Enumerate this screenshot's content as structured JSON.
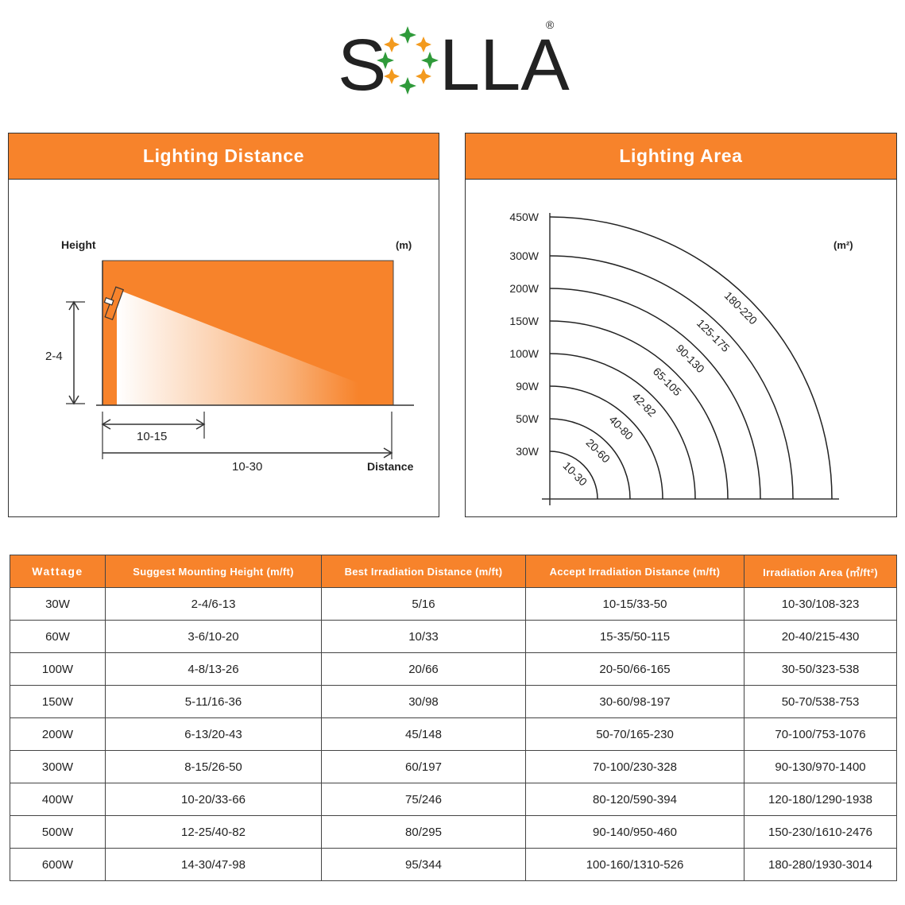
{
  "brand": {
    "name": "SOLLA",
    "registered_mark": "®",
    "letter_color": "#222222",
    "star_colors": [
      "#2f9a3a",
      "#f39a1e"
    ]
  },
  "accent_color": "#f7832b",
  "distance_panel": {
    "title": "Lighting Distance",
    "unit": "(m)",
    "height_label": "Height",
    "mount_height_value": "2-4",
    "best_distance_value": "10-15",
    "accept_distance_value": "10-30",
    "distance_label": "Distance"
  },
  "area_panel": {
    "title": "Lighting Area",
    "unit": "(m²)",
    "rings": [
      {
        "wattage": "30W",
        "area": "10-30"
      },
      {
        "wattage": "50W",
        "area": "20-60"
      },
      {
        "wattage": "90W",
        "area": "40-80"
      },
      {
        "wattage": "100W",
        "area": "42-82"
      },
      {
        "wattage": "150W",
        "area": "65-105"
      },
      {
        "wattage": "200W",
        "area": "90-130"
      },
      {
        "wattage": "300W",
        "area": "125-175"
      },
      {
        "wattage": "450W",
        "area": "180-220"
      }
    ]
  },
  "table": {
    "headers": {
      "wattage": "Wattage",
      "mounting_height": "Suggest Mounting Height (m/ft)",
      "best_distance": "Best Irradiation Distance (m/ft)",
      "accept_distance": "Accept Irradiation Distance (m/ft)",
      "area": "Irradiation Area (㎡/ft²)"
    },
    "rows": [
      [
        "30W",
        "2-4/6-13",
        "5/16",
        "10-15/33-50",
        "10-30/108-323"
      ],
      [
        "60W",
        "3-6/10-20",
        "10/33",
        "15-35/50-115",
        "20-40/215-430"
      ],
      [
        "100W",
        "4-8/13-26",
        "20/66",
        "20-50/66-165",
        "30-50/323-538"
      ],
      [
        "150W",
        "5-11/16-36",
        "30/98",
        "30-60/98-197",
        "50-70/538-753"
      ],
      [
        "200W",
        "6-13/20-43",
        "45/148",
        "50-70/165-230",
        "70-100/753-1076"
      ],
      [
        "300W",
        "8-15/26-50",
        "60/197",
        "70-100/230-328",
        "90-130/970-1400"
      ],
      [
        "400W",
        "10-20/33-66",
        "75/246",
        "80-120/590-394",
        "120-180/1290-1938"
      ],
      [
        "500W",
        "12-25/40-82",
        "80/295",
        "90-140/950-460",
        "150-230/1610-2476"
      ],
      [
        "600W",
        "14-30/47-98",
        "95/344",
        "100-160/1310-526",
        "180-280/1930-3014"
      ]
    ]
  }
}
